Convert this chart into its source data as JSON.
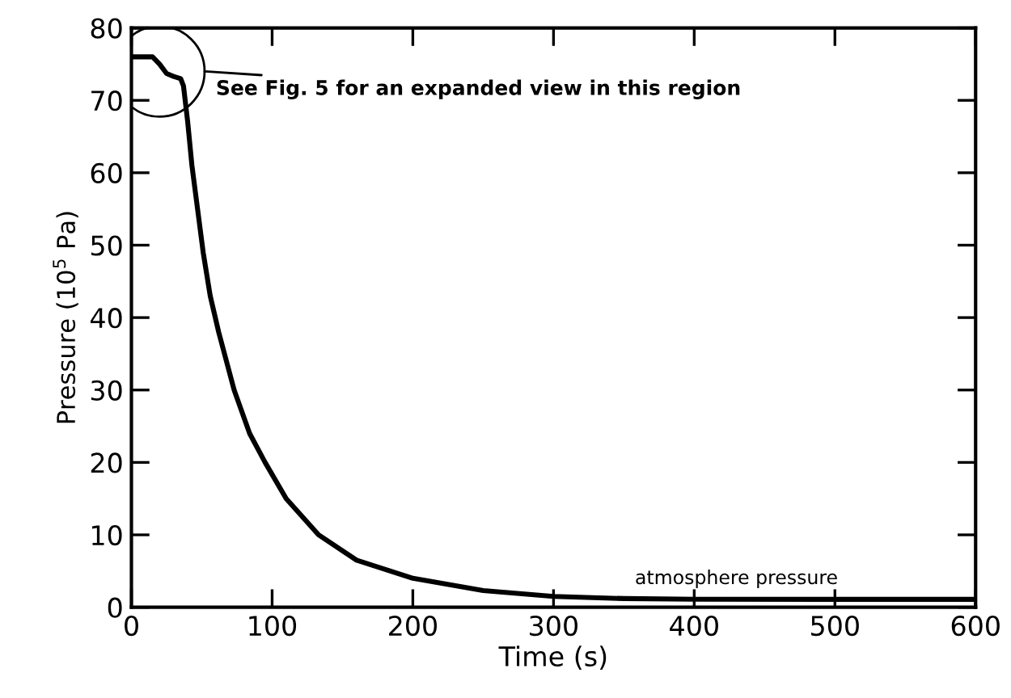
{
  "chart_data": {
    "type": "line",
    "xlabel": "Time (s)",
    "ylabel": "Pressure (10$^{5}$ Pa)",
    "series": [
      {
        "color": "#000000",
        "x": [
          0,
          15,
          20,
          25,
          30,
          35,
          37,
          40,
          43,
          47,
          51,
          56,
          62,
          73,
          84,
          95,
          110,
          133,
          160,
          200,
          250,
          300,
          350,
          400,
          500,
          600
        ],
        "values": [
          76,
          76,
          75,
          73.7,
          73.3,
          73,
          72,
          67,
          61,
          55,
          49,
          43,
          38,
          30,
          24,
          20,
          15,
          10,
          6.5,
          4,
          2.3,
          1.5,
          1.2,
          1.1,
          1.1,
          1.1
        ]
      }
    ],
    "xlim": [
      0,
      600
    ],
    "ylim": [
      0,
      80
    ],
    "xticks": [
      0,
      100,
      200,
      300,
      400,
      500,
      600
    ],
    "yticks": [
      0,
      10,
      20,
      30,
      40,
      50,
      60,
      70,
      80
    ],
    "grid": false,
    "legend": false,
    "marker": "none",
    "line_style": "solid",
    "annotations": [
      {
        "text": "See Fig. 5 for an expanded view in this region",
        "x": 20,
        "y": 74
      },
      {
        "text": "atmosphere pressure",
        "x": 430,
        "y": 1.1
      }
    ]
  }
}
